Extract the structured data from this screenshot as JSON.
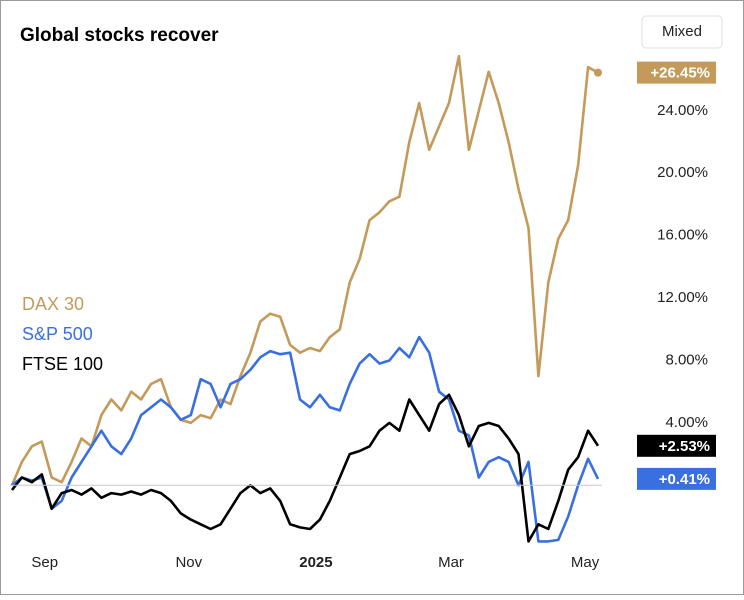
{
  "controls": {
    "mode": "Mixed"
  },
  "chart_data": {
    "type": "line",
    "title": "Global stocks recover",
    "x": [
      0,
      1,
      2,
      3,
      4,
      5,
      6,
      7,
      8,
      9,
      10,
      11,
      12,
      13,
      14,
      15,
      16,
      17,
      18,
      19,
      20,
      21,
      22,
      23,
      24,
      25,
      26,
      27,
      28,
      29,
      30,
      31,
      32,
      33,
      34,
      35,
      36,
      37,
      38,
      39,
      40,
      41,
      42,
      43,
      44,
      45,
      46,
      47,
      48,
      49,
      50,
      51,
      52,
      53,
      54,
      55,
      56,
      57,
      58,
      59
    ],
    "xlim": [
      0,
      59
    ],
    "xticks": [
      {
        "value": 3.3,
        "label": "Sep"
      },
      {
        "value": 17.8,
        "label": "Nov"
      },
      {
        "value": 30.6,
        "label": "2025"
      },
      {
        "value": 44.2,
        "label": "Mar"
      },
      {
        "value": 57.7,
        "label": "May"
      }
    ],
    "ylim": [
      -3.7,
      27.9
    ],
    "yticks": [
      {
        "value": 4,
        "label": "4.00%"
      },
      {
        "value": 8,
        "label": "8.00%"
      },
      {
        "value": 12,
        "label": "12.00%"
      },
      {
        "value": 16,
        "label": "16.00%"
      },
      {
        "value": 20,
        "label": "20.00%"
      },
      {
        "value": 24,
        "label": "24.00%"
      }
    ],
    "legend": "left",
    "series": [
      {
        "name": "DAX 30",
        "color": "#c49a5a",
        "last_label": "+26.45%",
        "values": [
          0,
          1.5,
          2.5,
          2.8,
          0.5,
          0.2,
          1.5,
          3,
          2.5,
          4.5,
          5.5,
          4.8,
          6,
          5.5,
          6.5,
          6.8,
          5,
          4.2,
          4,
          4.5,
          4.3,
          5.5,
          5.2,
          7,
          8.5,
          10.5,
          11,
          10.8,
          9,
          8.5,
          8.8,
          8.6,
          9.5,
          10,
          13,
          14.5,
          17,
          17.5,
          18.2,
          18.5,
          22,
          24.5,
          21.5,
          23,
          24.5,
          27.5,
          21.5,
          24,
          26.5,
          24.5,
          22,
          19,
          16.5,
          7,
          13,
          15.8,
          17,
          20.5,
          26.8,
          26.45
        ]
      },
      {
        "name": "S&P 500",
        "color": "#3a6fe0",
        "last_label": "+0.41%",
        "values": [
          0,
          0.5,
          0.3,
          0.5,
          -1.5,
          -1,
          0.5,
          1.5,
          2.5,
          3.5,
          2.5,
          2,
          3,
          4.5,
          5,
          5.5,
          5,
          4.2,
          4.5,
          6.8,
          6.5,
          5,
          6.5,
          6.8,
          7.4,
          8.2,
          8.6,
          8.4,
          8.5,
          5.5,
          5,
          5.8,
          5,
          4.8,
          6.5,
          7.8,
          8.4,
          7.8,
          8,
          8.8,
          8.2,
          9.5,
          8.5,
          6,
          5.5,
          3.5,
          3.2,
          0.5,
          1.5,
          1.8,
          1.5,
          0,
          1.5,
          -3.6,
          -3.6,
          -3.5,
          -2,
          0,
          1.7,
          0.41
        ]
      },
      {
        "name": "FTSE 100",
        "color": "#000000",
        "last_label": "+2.53%",
        "values": [
          -0.3,
          0.5,
          0.2,
          0.7,
          -1.5,
          -0.5,
          -0.3,
          -0.6,
          -0.2,
          -0.8,
          -0.5,
          -0.6,
          -0.4,
          -0.6,
          -0.3,
          -0.5,
          -1,
          -1.8,
          -2.2,
          -2.5,
          -2.8,
          -2.5,
          -1.5,
          -0.5,
          0,
          -0.5,
          -0.2,
          -1,
          -2.5,
          -2.7,
          -2.8,
          -2.2,
          -1,
          0.5,
          2,
          2.2,
          2.5,
          3.5,
          4,
          3.5,
          5.5,
          4.5,
          3.5,
          5.2,
          5.8,
          4.5,
          2.5,
          3.8,
          4,
          3.8,
          3,
          2,
          -3.6,
          -2.5,
          -2.8,
          -1,
          1,
          1.8,
          3.5,
          2.53
        ]
      }
    ]
  }
}
